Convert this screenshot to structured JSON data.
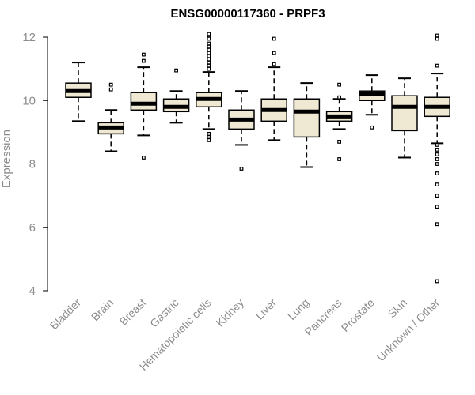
{
  "chart_data": {
    "type": "box",
    "title": "ENSG00000117360 - PRPF3",
    "ylabel": "Expression",
    "xlabel": "",
    "ylim": [
      4,
      12
    ],
    "yticks": [
      4,
      6,
      8,
      10,
      12
    ],
    "box_fill": "#EFE9D3",
    "box_stroke": "#000000",
    "grid": false,
    "categories": [
      "Bladder",
      "Brain",
      "Breast",
      "Gastric",
      "Hematopoietic cells",
      "Kidney",
      "Liver",
      "Lung",
      "Pancreas",
      "Prostate",
      "Skin",
      "Unknown / Other"
    ],
    "boxes": [
      {
        "category": "Bladder",
        "min": 9.35,
        "q1": 10.1,
        "median": 10.3,
        "q3": 10.55,
        "max": 11.2,
        "outliers": []
      },
      {
        "category": "Brain",
        "min": 8.4,
        "q1": 8.95,
        "median": 9.15,
        "q3": 9.3,
        "max": 9.7,
        "outliers": [
          10.35,
          10.5
        ]
      },
      {
        "category": "Breast",
        "min": 8.9,
        "q1": 9.7,
        "median": 9.9,
        "q3": 10.25,
        "max": 11.05,
        "outliers": [
          8.2,
          11.25,
          11.45
        ]
      },
      {
        "category": "Gastric",
        "min": 9.3,
        "q1": 9.65,
        "median": 9.8,
        "q3": 10.05,
        "max": 10.3,
        "outliers": [
          10.95
        ]
      },
      {
        "category": "Hematopoietic cells",
        "min": 9.1,
        "q1": 9.8,
        "median": 10.05,
        "q3": 10.25,
        "max": 10.9,
        "outliers": [
          8.75,
          8.85,
          8.95,
          11.0,
          11.1,
          11.2,
          11.3,
          11.4,
          11.5,
          11.6,
          11.7,
          11.8,
          11.95,
          12.05,
          12.1
        ]
      },
      {
        "category": "Kidney",
        "min": 8.6,
        "q1": 9.1,
        "median": 9.4,
        "q3": 9.7,
        "max": 10.3,
        "outliers": [
          7.85
        ]
      },
      {
        "category": "Liver",
        "min": 8.75,
        "q1": 9.35,
        "median": 9.7,
        "q3": 10.05,
        "max": 11.05,
        "outliers": [
          11.15,
          11.5,
          11.95
        ]
      },
      {
        "category": "Lung",
        "min": 7.9,
        "q1": 8.85,
        "median": 9.65,
        "q3": 10.05,
        "max": 10.55,
        "outliers": []
      },
      {
        "category": "Pancreas",
        "min": 9.1,
        "q1": 9.35,
        "median": 9.5,
        "q3": 9.65,
        "max": 10.05,
        "outliers": [
          8.15,
          8.7,
          10.1,
          10.5
        ]
      },
      {
        "category": "Prostate",
        "min": 9.55,
        "q1": 10.0,
        "median": 10.2,
        "q3": 10.3,
        "max": 10.8,
        "outliers": [
          9.15
        ]
      },
      {
        "category": "Skin",
        "min": 8.2,
        "q1": 9.05,
        "median": 9.8,
        "q3": 10.15,
        "max": 10.7,
        "outliers": []
      },
      {
        "category": "Unknown / Other",
        "min": 8.65,
        "q1": 9.5,
        "median": 9.8,
        "q3": 10.1,
        "max": 10.85,
        "outliers": [
          4.3,
          6.1,
          6.65,
          7.0,
          7.35,
          7.7,
          8.0,
          8.15,
          8.3,
          8.45,
          8.6,
          11.1,
          11.95,
          12.05
        ]
      }
    ]
  }
}
